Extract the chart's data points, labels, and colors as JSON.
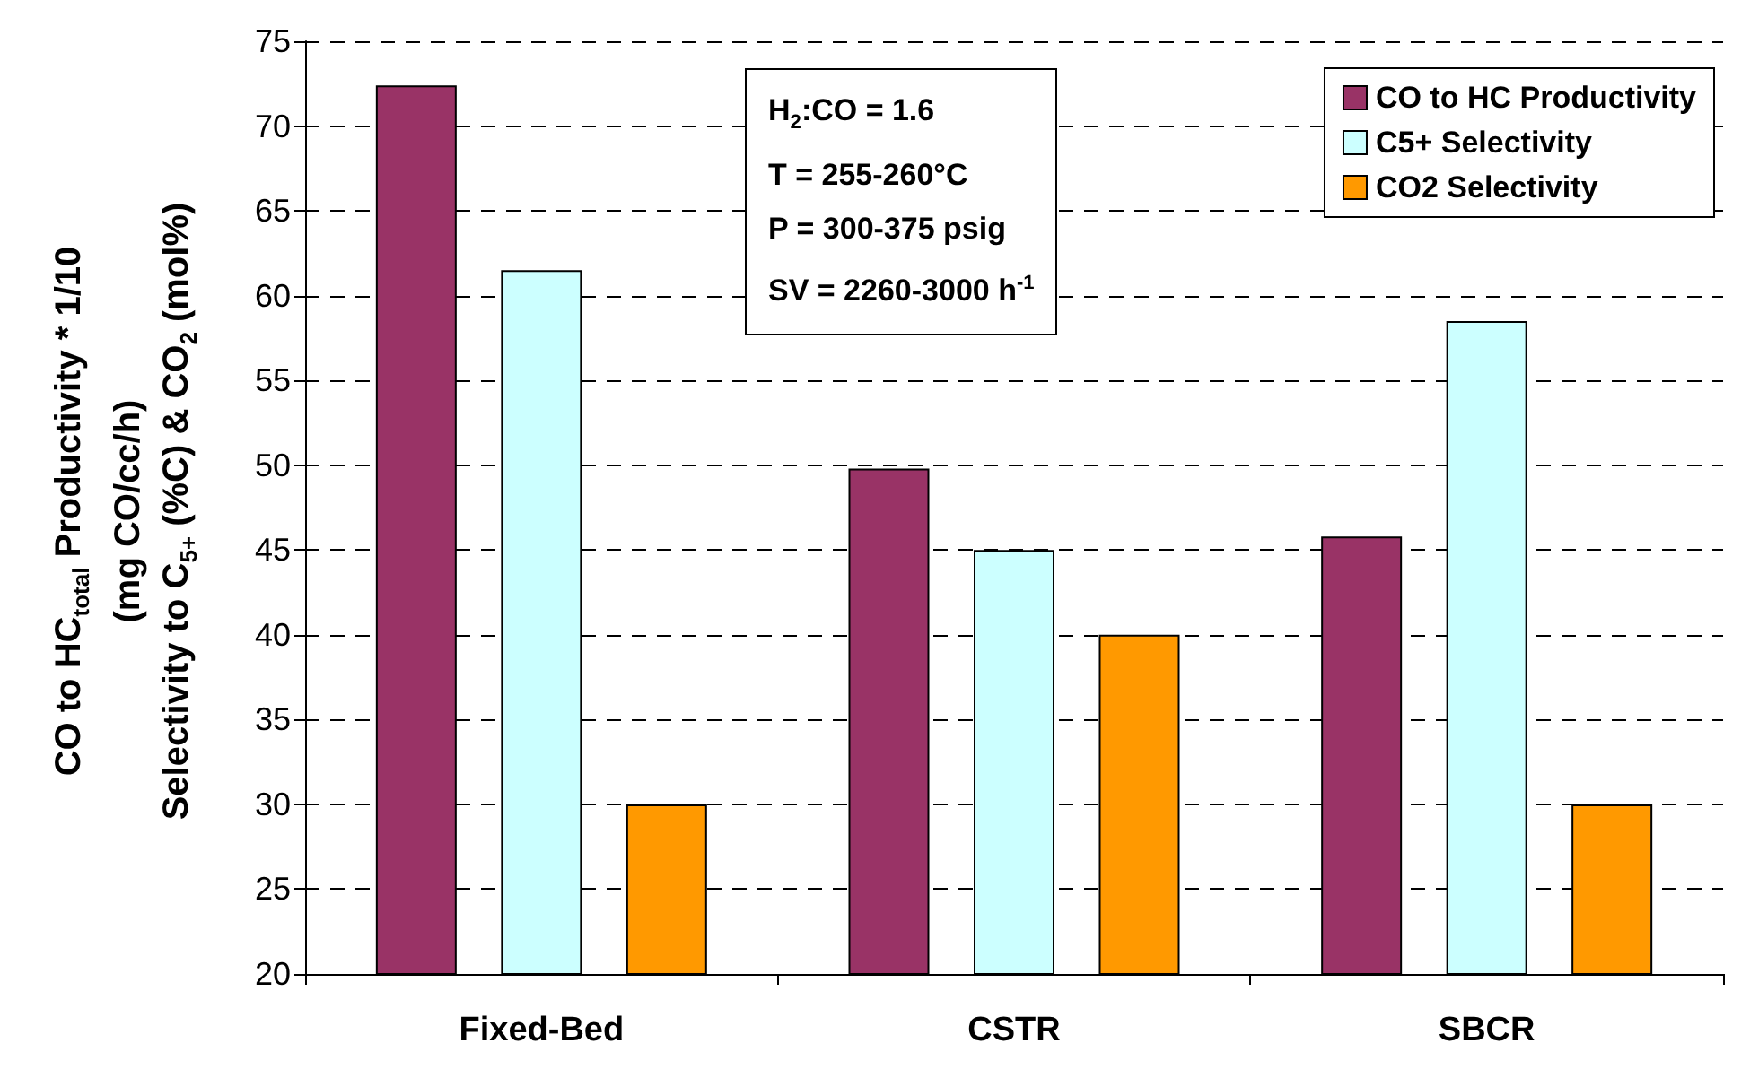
{
  "chart_data": {
    "type": "bar",
    "categories": [
      "Fixed-Bed",
      "CSTR",
      "SBCR"
    ],
    "series": [
      {
        "name": "CO to HC Productivity",
        "color": "#993366",
        "values": [
          72.4,
          49.8,
          45.8
        ]
      },
      {
        "name": "C5+ Selectivity",
        "color": "#ccffff",
        "values": [
          61.5,
          45,
          58.5
        ]
      },
      {
        "name": "CO2 Selectivity",
        "color": "#ff9900",
        "values": [
          30,
          40,
          30
        ]
      }
    ],
    "ylabel": "CO to HC$_{total}$ Productivity * 1/10\n(mg CO/cc/h)\nSelectivity to C$_{5+}$ (%C) & CO$_{2}$ (mol%)",
    "annotations": [
      "H$_{2}$:CO = 1.6",
      "T = 255-260°C",
      "P = 300-375 psig",
      "SV = 2260-3000 h$^{-1}$"
    ],
    "ylim": [
      20,
      75
    ],
    "yticks": [
      20,
      25,
      30,
      35,
      40,
      45,
      50,
      55,
      60,
      65,
      70,
      75
    ],
    "grid": "y",
    "legend": "top right"
  }
}
